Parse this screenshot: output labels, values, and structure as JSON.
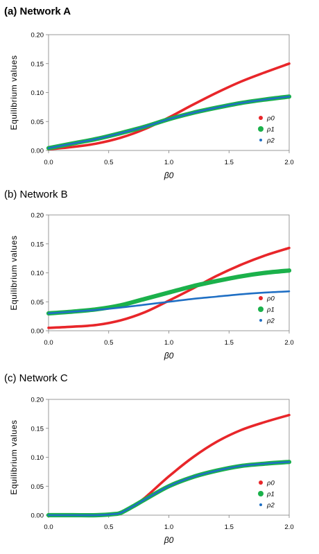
{
  "chart_data": [
    {
      "type": "line",
      "title": "(a) Network A",
      "title_bold": true,
      "xlabel": "β0",
      "ylabel": "Equilibrium values",
      "xlim": [
        0.0,
        2.0
      ],
      "ylim": [
        0.0,
        0.2
      ],
      "xticks": [
        "0.0",
        "0.5",
        "1.0",
        "1.5",
        "2.0"
      ],
      "yticks": [
        "0.00",
        "0.05",
        "0.10",
        "0.15",
        "0.20"
      ],
      "legend_position": "right",
      "grid": false,
      "x": [
        0.0,
        0.2,
        0.4,
        0.6,
        0.8,
        1.0,
        1.2,
        1.4,
        1.6,
        1.8,
        2.0
      ],
      "series": [
        {
          "name": "ρ0",
          "color": "#e8262a",
          "marker": "dot-large",
          "values": [
            0.002,
            0.006,
            0.012,
            0.022,
            0.037,
            0.057,
            0.079,
            0.1,
            0.119,
            0.135,
            0.15
          ]
        },
        {
          "name": "ρ1",
          "color": "#1bb14b",
          "marker": "dot-large",
          "values": [
            0.004,
            0.012,
            0.02,
            0.03,
            0.041,
            0.054,
            0.065,
            0.074,
            0.082,
            0.088,
            0.093
          ]
        },
        {
          "name": "ρ2",
          "color": "#1f6fc4",
          "marker": "dot-small",
          "values": [
            0.004,
            0.012,
            0.02,
            0.03,
            0.041,
            0.054,
            0.065,
            0.074,
            0.082,
            0.088,
            0.093
          ]
        }
      ]
    },
    {
      "type": "line",
      "title": "(b) Network B",
      "title_bold": false,
      "xlabel": "β0",
      "ylabel": "Equilibrium values",
      "xlim": [
        0.0,
        2.0
      ],
      "ylim": [
        0.0,
        0.2
      ],
      "xticks": [
        "0.0",
        "0.5",
        "1.0",
        "1.5",
        "2.0"
      ],
      "yticks": [
        "0.00",
        "0.05",
        "0.10",
        "0.15",
        "0.20"
      ],
      "legend_position": "right",
      "grid": false,
      "x": [
        0.0,
        0.2,
        0.4,
        0.6,
        0.8,
        1.0,
        1.2,
        1.4,
        1.6,
        1.8,
        2.0
      ],
      "series": [
        {
          "name": "ρ0",
          "color": "#e8262a",
          "marker": "dot-large",
          "values": [
            0.005,
            0.007,
            0.01,
            0.018,
            0.032,
            0.052,
            0.073,
            0.095,
            0.114,
            0.13,
            0.143
          ]
        },
        {
          "name": "ρ1",
          "color": "#1bb14b",
          "marker": "dot-large",
          "values": [
            0.03,
            0.033,
            0.037,
            0.044,
            0.055,
            0.066,
            0.077,
            0.086,
            0.094,
            0.1,
            0.104
          ]
        },
        {
          "name": "ρ2",
          "color": "#1f6fc4",
          "marker": "dot-small",
          "values": [
            0.03,
            0.033,
            0.036,
            0.04,
            0.045,
            0.05,
            0.055,
            0.059,
            0.063,
            0.066,
            0.068
          ]
        }
      ]
    },
    {
      "type": "line",
      "title": "(c) Network C",
      "title_bold": false,
      "xlabel": "β0",
      "ylabel": "Equilibrium values",
      "xlim": [
        0.0,
        2.0
      ],
      "ylim": [
        0.0,
        0.2
      ],
      "xticks": [
        "0.0",
        "0.5",
        "1.0",
        "1.5",
        "2.0"
      ],
      "yticks": [
        "0.00",
        "0.05",
        "0.10",
        "0.15",
        "0.20"
      ],
      "legend_position": "right",
      "grid": false,
      "x": [
        0.0,
        0.2,
        0.4,
        0.55,
        0.6,
        0.7,
        0.8,
        1.0,
        1.2,
        1.4,
        1.6,
        1.8,
        2.0
      ],
      "series": [
        {
          "name": "ρ0",
          "color": "#e8262a",
          "marker": "dot-large",
          "values": [
            0.0,
            0.0,
            0.0,
            0.002,
            0.004,
            0.015,
            0.03,
            0.067,
            0.1,
            0.127,
            0.147,
            0.161,
            0.173
          ]
        },
        {
          "name": "ρ1",
          "color": "#1bb14b",
          "marker": "dot-large",
          "values": [
            0.0,
            0.0,
            0.0,
            0.002,
            0.004,
            0.015,
            0.027,
            0.05,
            0.066,
            0.077,
            0.085,
            0.089,
            0.092
          ]
        },
        {
          "name": "ρ2",
          "color": "#1f6fc4",
          "marker": "dot-small",
          "values": [
            0.0,
            0.0,
            0.0,
            0.002,
            0.004,
            0.015,
            0.027,
            0.05,
            0.066,
            0.077,
            0.085,
            0.089,
            0.092
          ]
        }
      ]
    }
  ]
}
